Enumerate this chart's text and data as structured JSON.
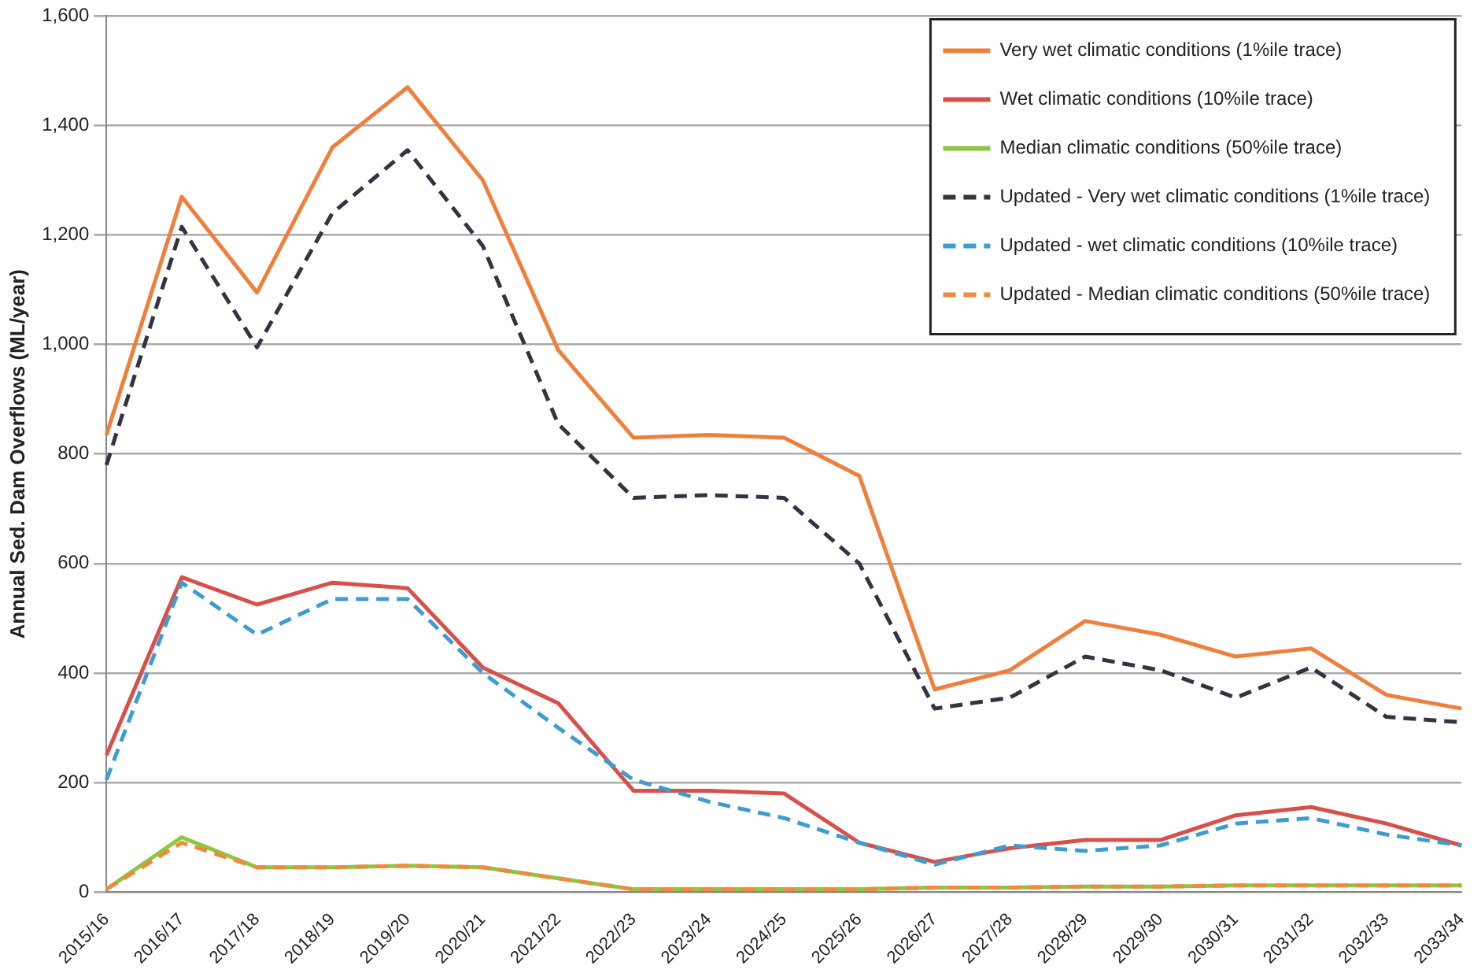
{
  "chart_data": {
    "type": "line",
    "ylabel": "Annual Sed. Dam Overflows (ML/year)",
    "categories": [
      "2015/16",
      "2016/17",
      "2017/18",
      "2018/19",
      "2019/20",
      "2020/21",
      "2021/22",
      "2022/23",
      "2023/24",
      "2024/25",
      "2025/26",
      "2026/27",
      "2027/28",
      "2028/29",
      "2029/30",
      "2030/31",
      "2031/32",
      "2032/33",
      "2033/34"
    ],
    "series": [
      {
        "name": "Very wet climatic conditions (1%ile trace)",
        "color": "#f07f3c",
        "line_style": "solid",
        "values": [
          835,
          1270,
          1095,
          1360,
          1470,
          1300,
          990,
          830,
          835,
          830,
          760,
          370,
          405,
          495,
          470,
          430,
          445,
          360,
          335
        ]
      },
      {
        "name": "Wet climatic conditions (10%ile trace)",
        "color": "#d94f4a",
        "line_style": "solid",
        "values": [
          250,
          575,
          525,
          565,
          555,
          410,
          345,
          185,
          185,
          180,
          90,
          55,
          80,
          95,
          95,
          140,
          155,
          125,
          85
        ]
      },
      {
        "name": "Median climatic conditions (50%ile trace)",
        "color": "#8dc63f",
        "line_style": "solid",
        "values": [
          5,
          100,
          45,
          45,
          48,
          45,
          25,
          5,
          5,
          5,
          5,
          8,
          8,
          10,
          10,
          12,
          12,
          12,
          12
        ]
      },
      {
        "name": "Updated - Very wet climatic conditions (1%ile trace)",
        "color": "#333344",
        "line_style": "dashed",
        "values": [
          780,
          1215,
          995,
          1240,
          1355,
          1180,
          855,
          720,
          725,
          720,
          600,
          335,
          355,
          430,
          405,
          355,
          410,
          320,
          310
        ]
      },
      {
        "name": "Updated - wet climatic conditions (10%ile trace)",
        "color": "#3e9dd0",
        "line_style": "dashed",
        "values": [
          205,
          565,
          470,
          535,
          535,
          400,
          300,
          205,
          165,
          135,
          90,
          50,
          85,
          75,
          85,
          125,
          135,
          105,
          85
        ]
      },
      {
        "name": "Updated - Median climatic conditions (50%ile trace)",
        "color": "#f08a3c",
        "line_style": "dashed",
        "values": [
          5,
          90,
          45,
          45,
          48,
          45,
          25,
          5,
          5,
          5,
          5,
          8,
          8,
          10,
          10,
          12,
          12,
          12,
          12
        ]
      }
    ],
    "ylim": [
      0,
      1600
    ],
    "yticks": [
      0,
      200,
      400,
      600,
      800,
      {
        "value": 1000,
        "label": "1,000"
      },
      {
        "value": 1200,
        "label": "1,200"
      },
      {
        "value": 1400,
        "label": "1,400"
      },
      {
        "value": 1600,
        "label": "1,600"
      }
    ],
    "grid": "y",
    "legend": "top right",
    "marker": "none"
  }
}
